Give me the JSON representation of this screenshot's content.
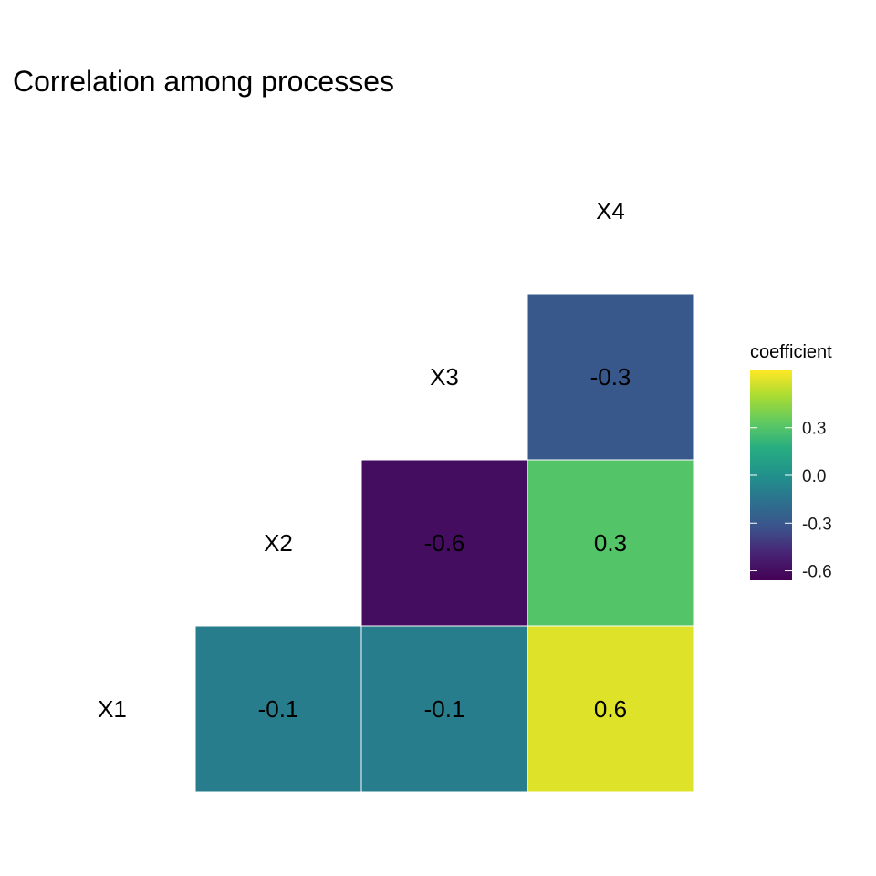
{
  "chart_data": {
    "type": "heatmap",
    "title": "Correlation among processes",
    "variables": [
      "X1",
      "X2",
      "X3",
      "X4"
    ],
    "cells": [
      {
        "row": "X1",
        "col": "X2",
        "value": -0.1,
        "label": "-0.1"
      },
      {
        "row": "X1",
        "col": "X3",
        "value": -0.1,
        "label": "-0.1"
      },
      {
        "row": "X1",
        "col": "X4",
        "value": 0.6,
        "label": "0.6"
      },
      {
        "row": "X2",
        "col": "X3",
        "value": -0.6,
        "label": "-0.6"
      },
      {
        "row": "X2",
        "col": "X4",
        "value": 0.3,
        "label": "0.3"
      },
      {
        "row": "X3",
        "col": "X4",
        "value": -0.3,
        "label": "-0.3"
      }
    ],
    "legend": {
      "title": "coefficient",
      "colormap": "viridis",
      "range": [
        -0.66,
        0.66
      ],
      "ticks": [
        {
          "value": 0.3,
          "label": "0.3"
        },
        {
          "value": 0.0,
          "label": "0.0"
        },
        {
          "value": -0.3,
          "label": "-0.3"
        },
        {
          "value": -0.6,
          "label": "-0.6"
        }
      ],
      "placement": "right"
    },
    "layout": "lower-triangle",
    "grid": false
  }
}
